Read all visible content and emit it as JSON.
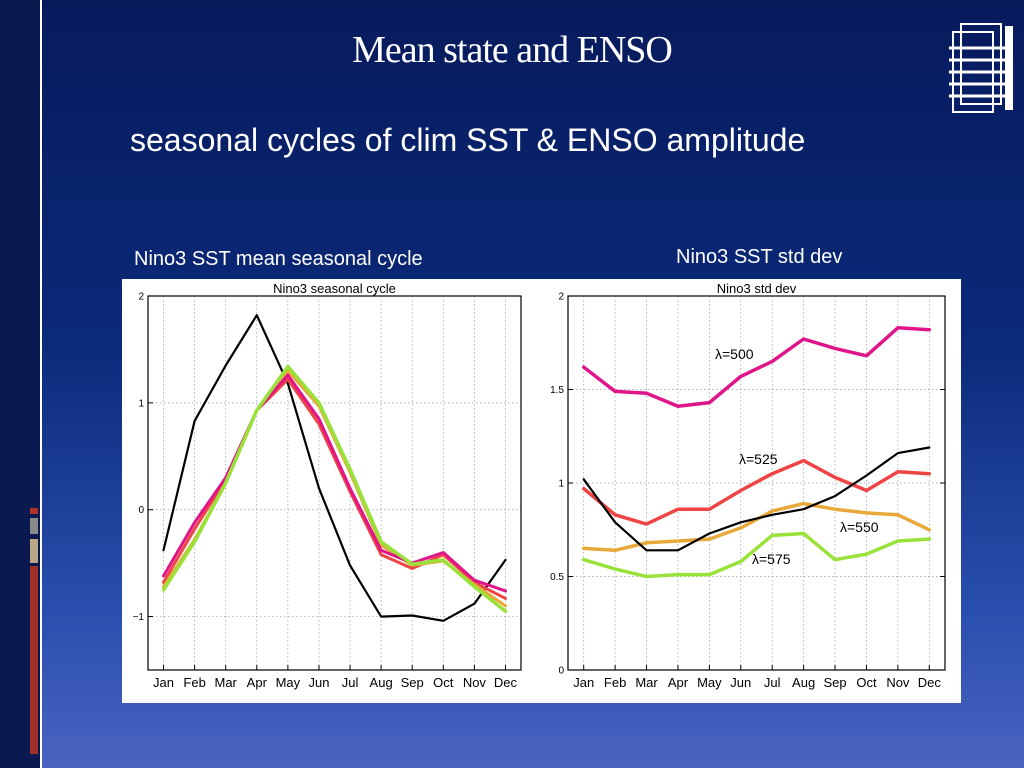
{
  "slide": {
    "title": "Mean state and ENSO",
    "subtitle": "seasonal cycles of clim SST & ENSO amplitude",
    "left_heading": "Nino3 SST mean seasonal cycle",
    "right_heading": "Nino3 SST std dev"
  },
  "colors": {
    "black": "#000000",
    "magenta": "#e0158a",
    "red": "#ee4444",
    "orange": "#e8a83a",
    "green": "#99e23a"
  },
  "chart_data": [
    {
      "type": "line",
      "title": "Nino3 seasonal cycle",
      "categories": [
        "Jan",
        "Feb",
        "Mar",
        "Apr",
        "May",
        "Jun",
        "Jul",
        "Aug",
        "Sep",
        "Oct",
        "Nov",
        "Dec"
      ],
      "ylim": [
        -1.5,
        2
      ],
      "yticks": [
        -1,
        0,
        1,
        2
      ],
      "ytick_labels": [
        "−1",
        "0",
        "1",
        "2"
      ],
      "grid": true,
      "series": [
        {
          "color": "#000000",
          "width": 2.2,
          "values": [
            -0.38,
            0.83,
            1.35,
            1.82,
            1.18,
            0.2,
            -0.52,
            -1.0,
            -0.99,
            -1.04,
            -0.88,
            -0.47
          ]
        },
        {
          "color": "#ee4444",
          "width": 3,
          "values": [
            -0.68,
            -0.18,
            0.28,
            0.93,
            1.22,
            0.8,
            0.17,
            -0.42,
            -0.55,
            -0.42,
            -0.68,
            -0.83
          ]
        },
        {
          "color": "#e8a83a",
          "width": 3,
          "values": [
            -0.72,
            -0.28,
            0.25,
            0.93,
            1.3,
            0.97,
            0.35,
            -0.33,
            -0.52,
            -0.48,
            -0.7,
            -0.9
          ]
        },
        {
          "color": "#e0158a",
          "width": 3,
          "values": [
            -0.62,
            -0.12,
            0.3,
            0.93,
            1.26,
            0.85,
            0.2,
            -0.38,
            -0.5,
            -0.4,
            -0.66,
            -0.76
          ]
        },
        {
          "color": "#99e23a",
          "width": 3.5,
          "values": [
            -0.75,
            -0.3,
            0.25,
            0.93,
            1.34,
            1.0,
            0.38,
            -0.3,
            -0.51,
            -0.47,
            -0.72,
            -0.95
          ]
        }
      ]
    },
    {
      "type": "line",
      "title": "Nino3 std dev",
      "categories": [
        "Jan",
        "Feb",
        "Mar",
        "Apr",
        "May",
        "Jun",
        "Jul",
        "Aug",
        "Sep",
        "Oct",
        "Nov",
        "Dec"
      ],
      "ylim": [
        0,
        2
      ],
      "yticks": [
        0,
        0.5,
        1,
        1.5,
        2
      ],
      "ytick_labels": [
        "0",
        "0.5",
        "1",
        "1.5",
        "2"
      ],
      "grid": true,
      "series": [
        {
          "name": "λ=500",
          "color": "#e0158a",
          "width": 3.5,
          "values": [
            1.62,
            1.49,
            1.48,
            1.41,
            1.43,
            1.57,
            1.65,
            1.77,
            1.72,
            1.68,
            1.83,
            1.82
          ]
        },
        {
          "name": "λ=525",
          "color": "#ee4444",
          "width": 3.5,
          "values": [
            0.97,
            0.83,
            0.78,
            0.86,
            0.86,
            0.96,
            1.05,
            1.12,
            1.03,
            0.96,
            1.06,
            1.05
          ]
        },
        {
          "name": "λ=550",
          "color": "#e8a83a",
          "width": 3.5,
          "values": [
            0.65,
            0.64,
            0.68,
            0.69,
            0.7,
            0.76,
            0.85,
            0.89,
            0.86,
            0.84,
            0.83,
            0.75
          ]
        },
        {
          "name": "λ=575",
          "color": "#99e23a",
          "width": 3.5,
          "values": [
            0.59,
            0.54,
            0.5,
            0.51,
            0.51,
            0.58,
            0.72,
            0.73,
            0.59,
            0.62,
            0.69,
            0.7
          ]
        },
        {
          "color": "#000000",
          "width": 2.2,
          "values": [
            1.02,
            0.79,
            0.64,
            0.64,
            0.73,
            0.79,
            0.83,
            0.86,
            0.93,
            1.04,
            1.16,
            1.19
          ]
        }
      ],
      "annotations": [
        {
          "text": "λ=500",
          "series": 0
        },
        {
          "text": "λ=525",
          "series": 1
        },
        {
          "text": "λ=550",
          "series": 2
        },
        {
          "text": "λ=575",
          "series": 3
        }
      ]
    }
  ]
}
